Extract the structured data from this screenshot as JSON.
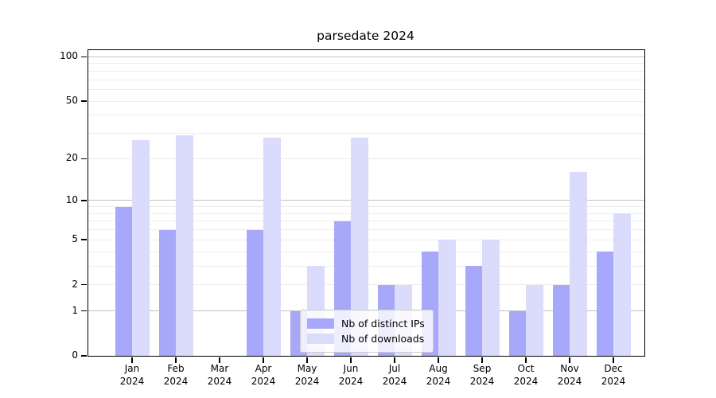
{
  "title": "parsedate 2024",
  "colors": {
    "ips_bar": "#a8a8fa",
    "downloads_bar": "#dbdbfb",
    "grid_minor": "#ededed",
    "grid_major": "#c0c0c0",
    "axis": "#000000",
    "background": "#ffffff"
  },
  "legend": {
    "items": [
      {
        "label": "Nb of distinct IPs",
        "color": "#a8a8fa"
      },
      {
        "label": "Nb of downloads",
        "color": "#dbdbfb"
      }
    ]
  },
  "chart_data": {
    "type": "bar",
    "title": "parsedate 2024",
    "xlabel": "",
    "ylabel": "",
    "yscale": "log1p",
    "ylim": [
      0,
      111
    ],
    "grid": "horizontal, minor light + major dark at 1/10/100, legend lower center",
    "categories": [
      "Jan",
      "Feb",
      "Mar",
      "Apr",
      "May",
      "Jun",
      "Jul",
      "Aug",
      "Sep",
      "Oct",
      "Nov",
      "Dec"
    ],
    "x_sub_label": "2024",
    "ytick_values": [
      0,
      1,
      2,
      5,
      10,
      20,
      50,
      100
    ],
    "ytick_labels": [
      "0",
      "1",
      "2",
      "5",
      "10",
      "20",
      "50",
      "100"
    ],
    "grid_minor_values": [
      2,
      3,
      4,
      5,
      6,
      7,
      8,
      9,
      20,
      30,
      40,
      50,
      60,
      70,
      80,
      90
    ],
    "grid_major_values": [
      1,
      10,
      100
    ],
    "series": [
      {
        "name": "Nb of distinct IPs",
        "color": "#a8a8fa",
        "values": [
          9,
          6,
          0,
          6,
          1,
          7,
          2,
          4,
          3,
          1,
          2,
          4
        ]
      },
      {
        "name": "Nb of downloads",
        "color": "#dbdbfb",
        "values": [
          27,
          29,
          0,
          28,
          3,
          28,
          2,
          5,
          5,
          2,
          16,
          8
        ]
      }
    ]
  }
}
